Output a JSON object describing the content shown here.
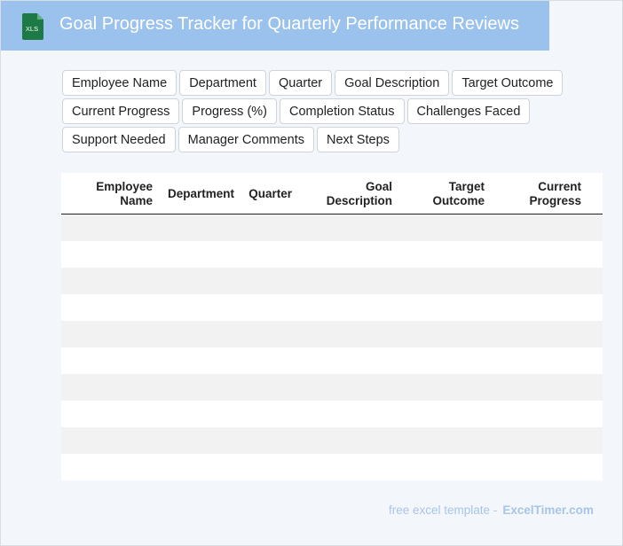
{
  "header": {
    "icon_label": "XLS",
    "title": "Goal Progress Tracker for Quarterly Performance Reviews"
  },
  "chips": [
    "Employee Name",
    "Department",
    "Quarter",
    "Goal Description",
    "Target Outcome",
    "Current Progress",
    "Progress (%)",
    "Completion Status",
    "Challenges Faced",
    "Support Needed",
    "Manager Comments",
    "Next Steps"
  ],
  "table": {
    "columns": [
      "Employee\nName",
      "Department",
      "Quarter",
      "Goal\nDescription",
      "Target\nOutcome",
      "Current\nProgress"
    ],
    "row_count": 10
  },
  "footer": {
    "text": "free excel template -",
    "brand": "ExcelTimer.com"
  },
  "colors": {
    "header_bg": "#9bc2ec",
    "icon_green": "#1e7a45",
    "page_bg": "#f3f7fc"
  }
}
